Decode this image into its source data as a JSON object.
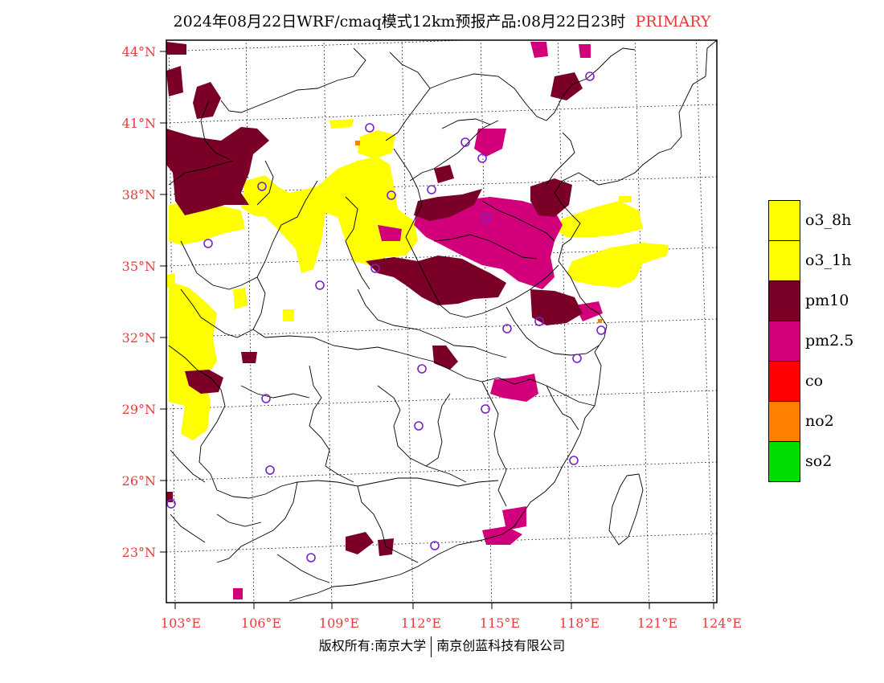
{
  "title": {
    "main": "2024年08月22日WRF/cmaq模式12km预报产品:08月22日23时",
    "pollutant_type": "PRIMARY"
  },
  "axes": {
    "lat_labels": [
      "44°N",
      "41°N",
      "38°N",
      "35°N",
      "32°N",
      "29°N",
      "26°N",
      "23°N"
    ],
    "lon_labels": [
      "103°E",
      "106°E",
      "109°E",
      "112°E",
      "115°E",
      "118°E",
      "121°E",
      "124°E"
    ]
  },
  "legend": [
    {
      "label": "o3_8h",
      "color": "#ffff00"
    },
    {
      "label": "o3_1h",
      "color": "#ffff00"
    },
    {
      "label": "pm10",
      "color": "#7a0028"
    },
    {
      "label": "pm2.5",
      "color": "#d1007a"
    },
    {
      "label": "co",
      "color": "#ff0000"
    },
    {
      "label": "no2",
      "color": "#ff8000"
    },
    {
      "label": "so2",
      "color": "#00dd00"
    }
  ],
  "colors": {
    "o3": "#ffff00",
    "pm10": "#7a0028",
    "pm25": "#d1007a",
    "station": "#7a22cc",
    "label": "#e83a3a"
  },
  "copyright": {
    "left": "版权所有:南京大学",
    "right": "南京创蓝科技有限公司"
  }
}
